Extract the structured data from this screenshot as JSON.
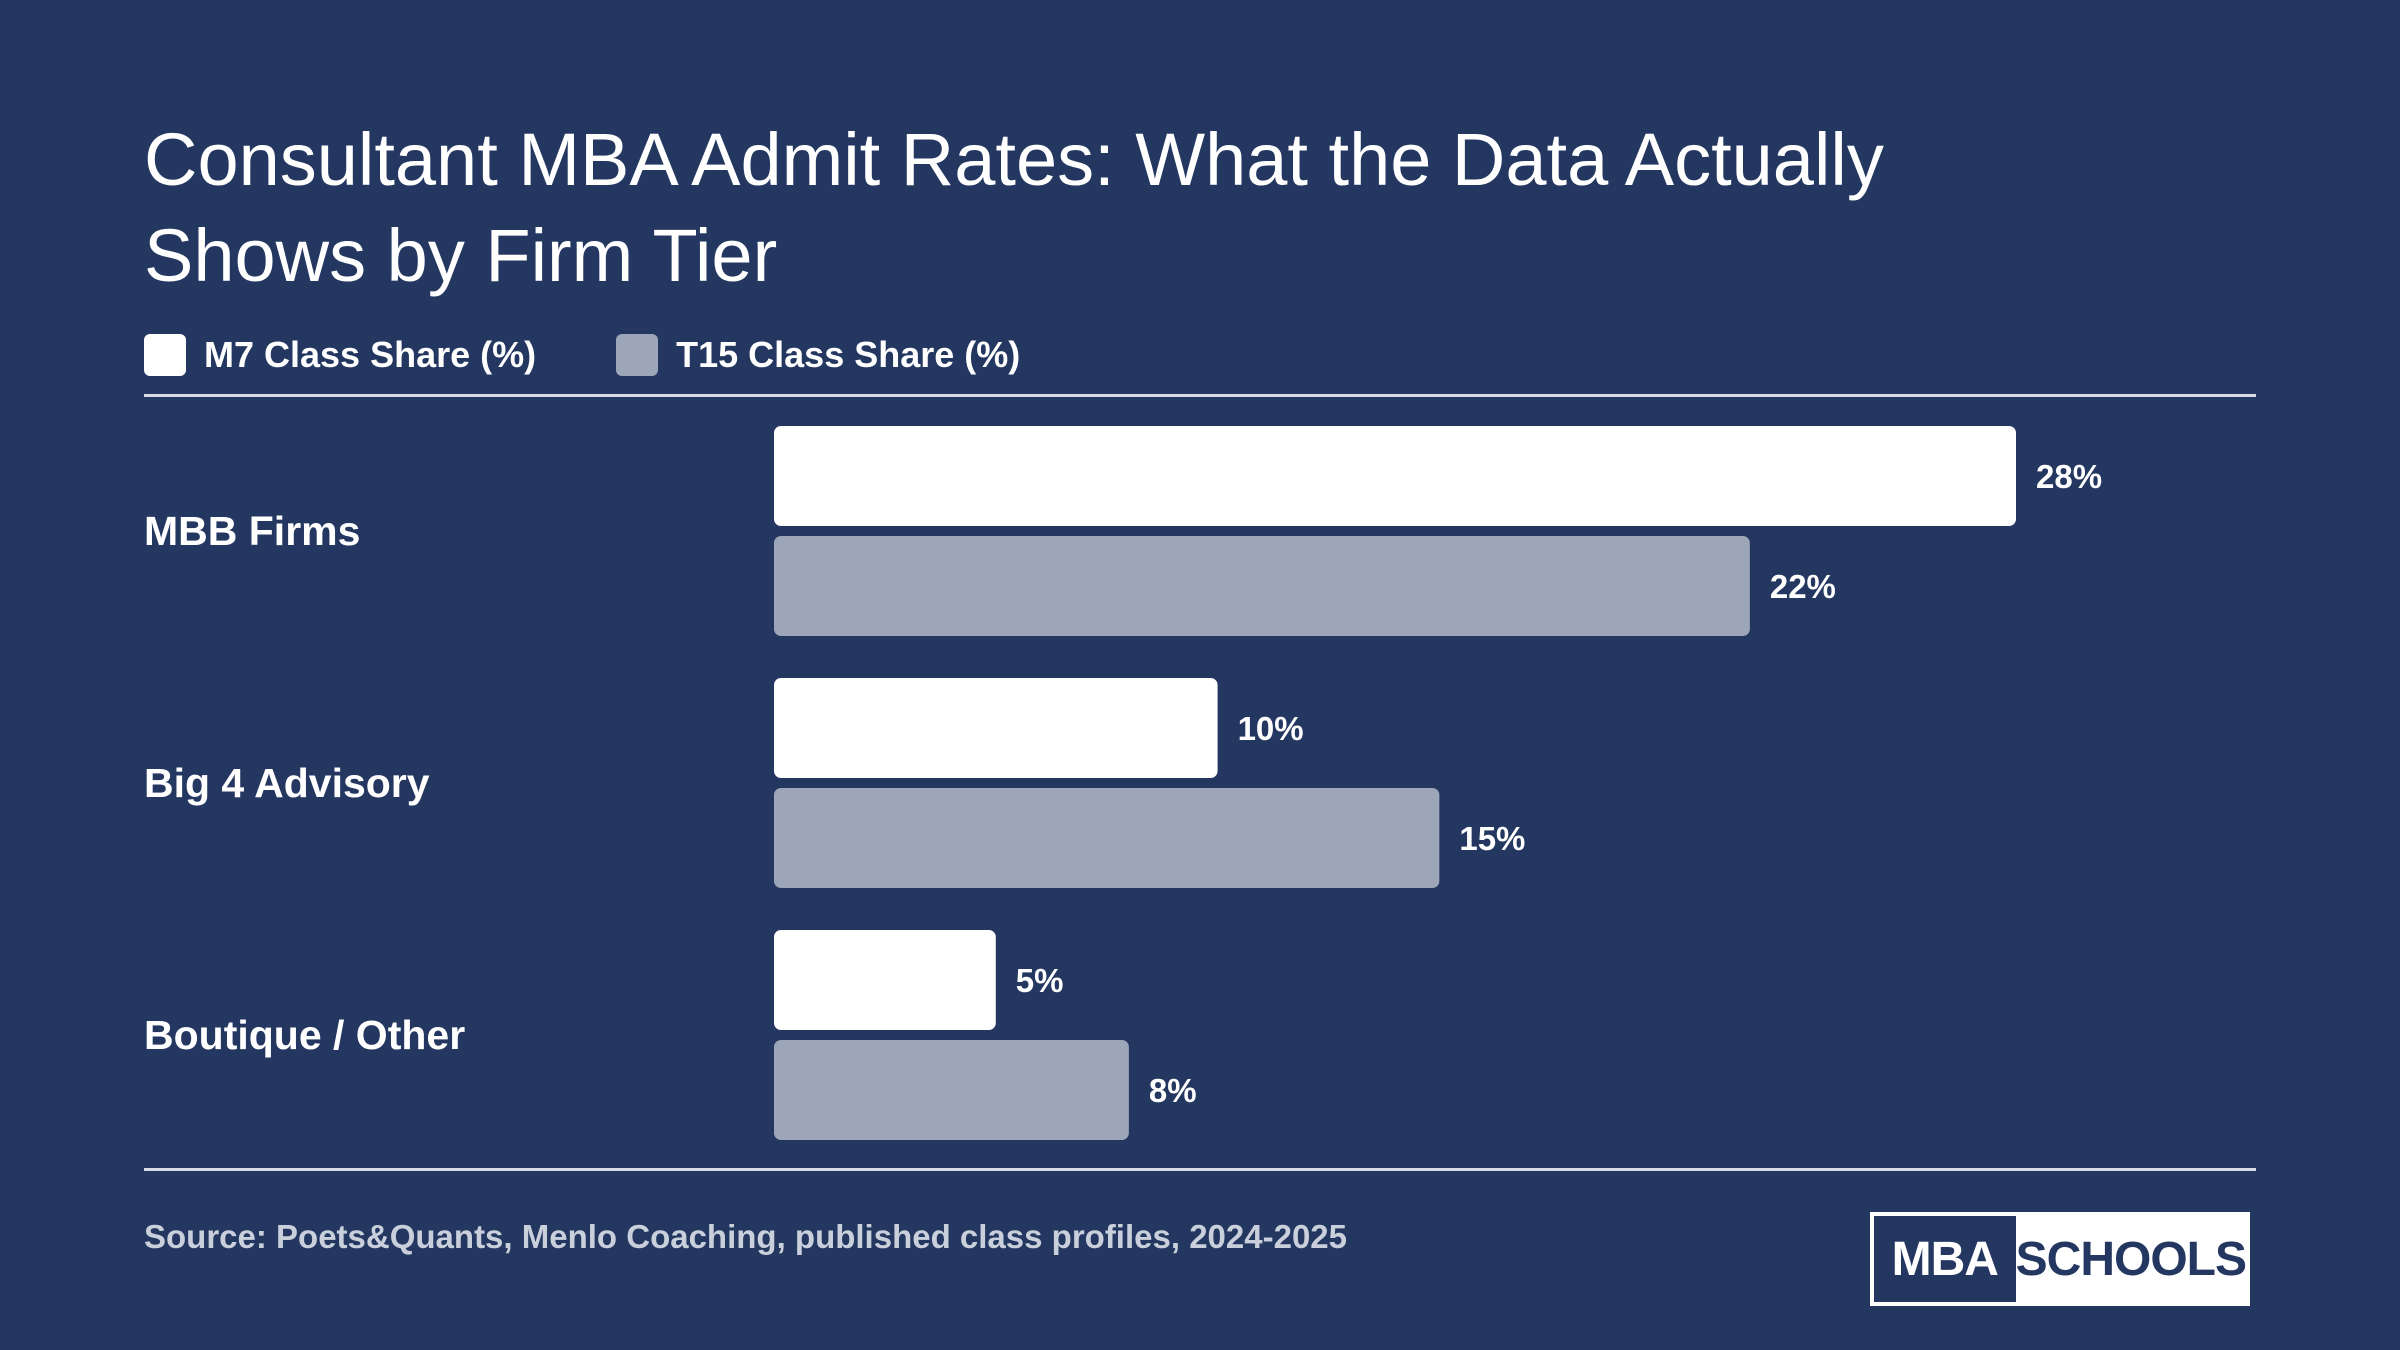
{
  "title": "Consultant MBA Admit Rates: What the Data Actually Shows by Firm Tier",
  "source": "Source: Poets&Quants, Menlo Coaching, published class profiles, 2024-2025",
  "logo": {
    "left_text": "MBA",
    "right_text": "SCHOOLS"
  },
  "colors": {
    "background": "#243760",
    "m7": "#ffffff",
    "t15": "#9da6b8"
  },
  "chart_data": {
    "type": "bar",
    "orientation": "horizontal",
    "title": "Consultant MBA Admit Rates: What the Data Actually Shows by Firm Tier",
    "categories": [
      "MBB Firms",
      "Big 4 Advisory",
      "Boutique / Other"
    ],
    "series": [
      {
        "name": "M7 Class Share (%)",
        "values": [
          28,
          10,
          5
        ],
        "color": "#ffffff"
      },
      {
        "name": "T15 Class Share (%)",
        "values": [
          22,
          15,
          8
        ],
        "color": "#9da6b8"
      }
    ],
    "value_labels": [
      [
        "28%",
        "10%",
        "5%"
      ],
      [
        "22%",
        "15%",
        "8%"
      ]
    ],
    "xlim": [
      0,
      28
    ],
    "grid": false,
    "legend": "top-left"
  }
}
